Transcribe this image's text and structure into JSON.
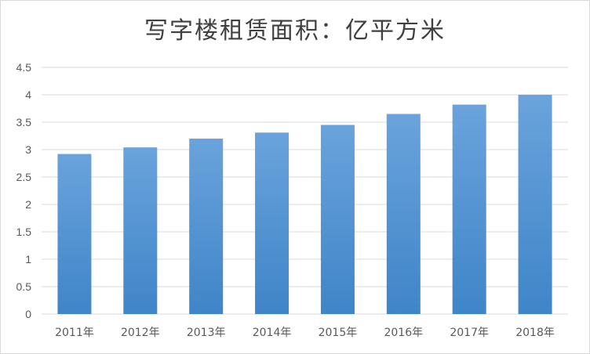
{
  "chart_data": {
    "type": "bar",
    "title": "写字楼租赁面积：亿平方米",
    "categories": [
      "2011年",
      "2012年",
      "2013年",
      "2014年",
      "2015年",
      "2016年",
      "2017年",
      "2018年"
    ],
    "values": [
      2.92,
      3.04,
      3.2,
      3.31,
      3.45,
      3.65,
      3.82,
      4.0
    ],
    "ylim": [
      0,
      4.5
    ],
    "yticks": [
      "0",
      "0.5",
      "1",
      "1.5",
      "2",
      "2.5",
      "3",
      "3.5",
      "4",
      "4.5"
    ],
    "grid": true,
    "legend": "none",
    "bar_color_top": "#6aa3dc",
    "bar_color_bottom": "#3f85c8",
    "grid_color": "#d9d9d9"
  }
}
